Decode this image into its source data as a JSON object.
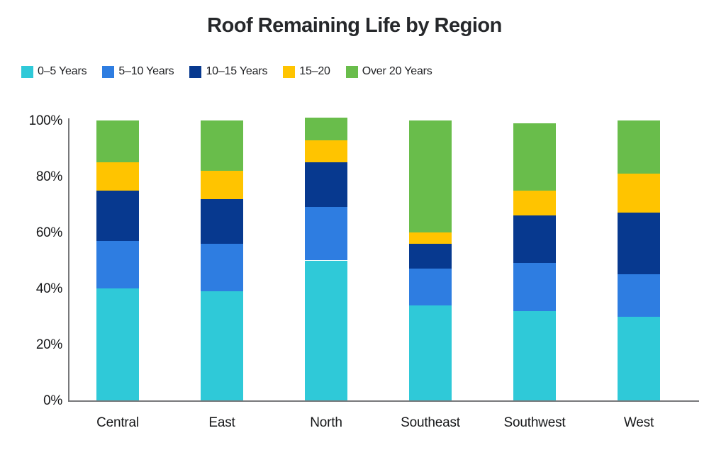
{
  "title": "Roof Remaining Life by Region",
  "chart_data": {
    "type": "bar",
    "stacked": true,
    "title": "Roof Remaining Life by Region",
    "categories": [
      "Central",
      "East",
      "North",
      "Southeast",
      "Southwest",
      "West"
    ],
    "series": [
      {
        "name": "0–5 Years",
        "color": "#2fc9d8",
        "values": [
          40,
          39,
          50,
          34,
          32,
          30
        ]
      },
      {
        "name": "5–10 Years",
        "color": "#2e7de1",
        "values": [
          17,
          17,
          19,
          13,
          17,
          15
        ]
      },
      {
        "name": "10–15 Years",
        "color": "#07398f",
        "values": [
          18,
          16,
          16,
          9,
          17,
          22
        ]
      },
      {
        "name": "15–20",
        "color": "#ffc400",
        "values": [
          10,
          10,
          8,
          4,
          9,
          14
        ]
      },
      {
        "name": "Over 20 Years",
        "color": "#69bd4b",
        "values": [
          15,
          18,
          8,
          40,
          24,
          19
        ]
      }
    ],
    "xlabel": "",
    "ylabel": "",
    "units": "percent",
    "ylim": [
      0,
      100
    ],
    "y_ticks": [
      {
        "label": "0%",
        "value": 0
      },
      {
        "label": "20%",
        "value": 20
      },
      {
        "label": "40%",
        "value": 40
      },
      {
        "label": "60%",
        "value": 60
      },
      {
        "label": "80%",
        "value": 80
      },
      {
        "label": "100%",
        "value": 100
      }
    ],
    "grid": false,
    "legend_position": "top-left"
  }
}
